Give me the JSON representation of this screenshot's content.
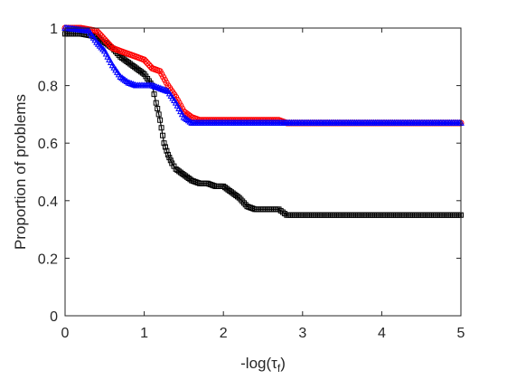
{
  "chart_data": {
    "type": "line",
    "title": "",
    "xlabel": "-log(τ",
    "xlabel_sub": "f",
    "xlabel_close": ")",
    "ylabel": "Proportion of problems",
    "xlim": [
      0,
      5
    ],
    "ylim": [
      0,
      1
    ],
    "xticks": [
      0,
      1,
      2,
      3,
      4,
      5
    ],
    "yticks": [
      0,
      0.2,
      0.4,
      0.6,
      0.8,
      1
    ],
    "xtick_labels": [
      "0",
      "1",
      "2",
      "3",
      "4",
      "5"
    ],
    "ytick_labels": [
      "0",
      "0.2",
      "0.4",
      "0.6",
      "0.8",
      "1"
    ],
    "grid": false,
    "legend": false,
    "series": [
      {
        "color": "#000000",
        "marker": "square",
        "points": [
          [
            0,
            0.98
          ],
          [
            0.2,
            0.98
          ],
          [
            0.4,
            0.97
          ],
          [
            0.5,
            0.95
          ],
          [
            0.6,
            0.93
          ],
          [
            0.7,
            0.9
          ],
          [
            0.8,
            0.88
          ],
          [
            0.9,
            0.86
          ],
          [
            1.0,
            0.84
          ],
          [
            1.1,
            0.8
          ],
          [
            1.15,
            0.74
          ],
          [
            1.2,
            0.68
          ],
          [
            1.25,
            0.6
          ],
          [
            1.3,
            0.56
          ],
          [
            1.35,
            0.53
          ],
          [
            1.4,
            0.51
          ],
          [
            1.5,
            0.49
          ],
          [
            1.6,
            0.47
          ],
          [
            1.7,
            0.46
          ],
          [
            1.8,
            0.46
          ],
          [
            1.9,
            0.45
          ],
          [
            2.0,
            0.45
          ],
          [
            2.1,
            0.43
          ],
          [
            2.2,
            0.41
          ],
          [
            2.3,
            0.38
          ],
          [
            2.4,
            0.37
          ],
          [
            2.5,
            0.37
          ],
          [
            2.6,
            0.37
          ],
          [
            2.7,
            0.37
          ],
          [
            2.75,
            0.36
          ],
          [
            2.8,
            0.35
          ],
          [
            3.0,
            0.35
          ],
          [
            3.5,
            0.35
          ],
          [
            4.0,
            0.35
          ],
          [
            4.5,
            0.35
          ],
          [
            5.0,
            0.35
          ]
        ]
      },
      {
        "color": "#ff0000",
        "marker": "circle",
        "points": [
          [
            0,
            1.0
          ],
          [
            0.2,
            1.0
          ],
          [
            0.4,
            0.99
          ],
          [
            0.5,
            0.96
          ],
          [
            0.6,
            0.93
          ],
          [
            0.7,
            0.92
          ],
          [
            0.8,
            0.91
          ],
          [
            0.9,
            0.9
          ],
          [
            1.0,
            0.89
          ],
          [
            1.1,
            0.86
          ],
          [
            1.2,
            0.85
          ],
          [
            1.3,
            0.8
          ],
          [
            1.4,
            0.76
          ],
          [
            1.5,
            0.71
          ],
          [
            1.6,
            0.69
          ],
          [
            1.7,
            0.68
          ],
          [
            2.0,
            0.68
          ],
          [
            2.5,
            0.68
          ],
          [
            2.7,
            0.68
          ],
          [
            2.8,
            0.67
          ],
          [
            3.0,
            0.67
          ],
          [
            3.5,
            0.67
          ],
          [
            4.0,
            0.67
          ],
          [
            4.5,
            0.67
          ],
          [
            5.0,
            0.67
          ]
        ]
      },
      {
        "color": "#0000ff",
        "marker": "triangle",
        "points": [
          [
            0,
            1.0
          ],
          [
            0.3,
            0.99
          ],
          [
            0.4,
            0.95
          ],
          [
            0.5,
            0.92
          ],
          [
            0.6,
            0.87
          ],
          [
            0.7,
            0.83
          ],
          [
            0.8,
            0.81
          ],
          [
            0.9,
            0.8
          ],
          [
            1.0,
            0.8
          ],
          [
            1.1,
            0.8
          ],
          [
            1.2,
            0.79
          ],
          [
            1.3,
            0.78
          ],
          [
            1.4,
            0.74
          ],
          [
            1.5,
            0.69
          ],
          [
            1.6,
            0.67
          ],
          [
            1.7,
            0.67
          ],
          [
            2.0,
            0.67
          ],
          [
            2.5,
            0.67
          ],
          [
            3.0,
            0.67
          ],
          [
            3.5,
            0.67
          ],
          [
            4.0,
            0.67
          ],
          [
            4.5,
            0.67
          ],
          [
            5.0,
            0.67
          ]
        ]
      }
    ]
  }
}
